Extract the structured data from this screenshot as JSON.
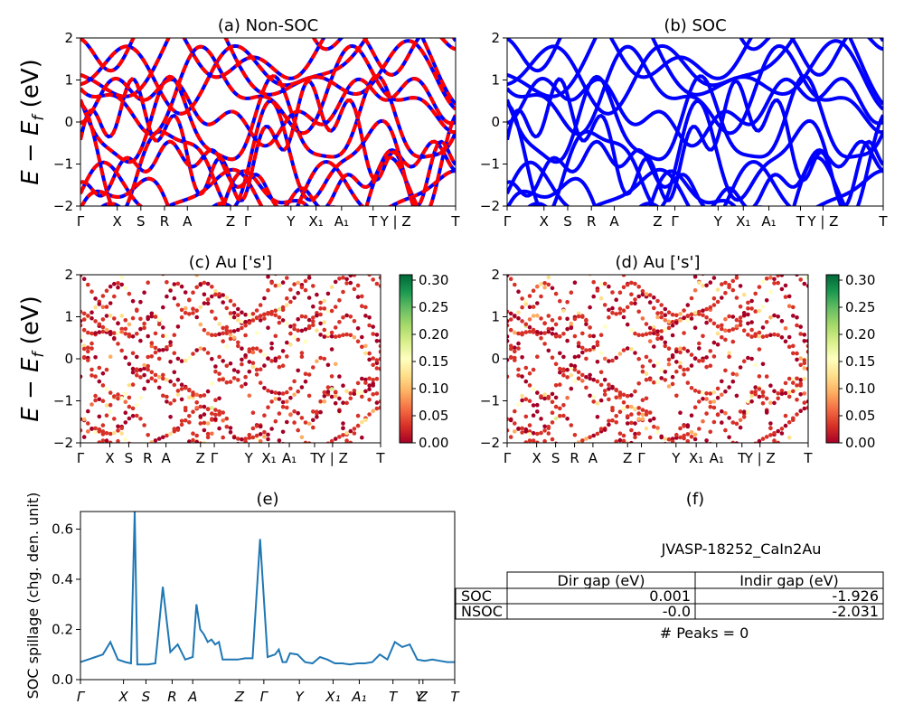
{
  "figure": {
    "ylabel_text": "E − E",
    "ylabel_sub": "f",
    "ylabel_unit": " (eV)",
    "kpath_bands": [
      "Γ",
      "X",
      "S",
      "R",
      "A",
      "Z",
      "Γ",
      "Y",
      "X₁",
      "A₁",
      "T",
      "Y | Z",
      "T"
    ],
    "kpath_spill": [
      "Γ",
      "X",
      "S",
      "R",
      "A",
      "Z",
      "Γ",
      "Y",
      "X₁",
      "A₁",
      "T",
      "Y",
      "Z",
      "T"
    ]
  },
  "colors": {
    "nonsoc_a": "#0000ff",
    "nonsoc_b": "#ff0000",
    "soc": "#0000ff",
    "spill": "#1f77b4",
    "cmap": [
      "#a50026",
      "#d73027",
      "#f46d43",
      "#fdae61",
      "#fee08b",
      "#ffffbf",
      "#d9ef8b",
      "#a6d96a",
      "#66bd63",
      "#1a9850",
      "#006837"
    ]
  },
  "panels": {
    "a": {
      "title": "(a) Non-SOC"
    },
    "b": {
      "title": "(b) SOC"
    },
    "c": {
      "title": "(c)  Au ['s']"
    },
    "d": {
      "title": "(d) Au ['s']"
    },
    "e": {
      "title": "(e)",
      "ylabel": "SOC spillage (chg. den. unit)"
    },
    "f": {
      "title": "(f)"
    }
  },
  "colorbar": {
    "ticks": [
      "0.00",
      "0.05",
      "0.10",
      "0.15",
      "0.20",
      "0.25",
      "0.30"
    ]
  },
  "table": {
    "material": "JVASP-18252_CaIn2Au",
    "headers": [
      "Dir gap (eV)",
      "Indir gap (eV)"
    ],
    "rows": [
      {
        "label": "SOC",
        "dir": "0.001",
        "indir": "-1.926"
      },
      {
        "label": "NSOC",
        "dir": "-0.0",
        "indir": "-2.031"
      }
    ],
    "peaks": "# Peaks = 0"
  },
  "chart_data": [
    {
      "type": "line",
      "title": "(a) Non-SOC",
      "ylabel": "E − E_f (eV)",
      "ylim": [
        -2,
        2
      ],
      "yticks": [
        -2,
        -1,
        0,
        1,
        2
      ],
      "series": [
        {
          "name": "",
          "style": "blue solid overlaid with red dashed"
        }
      ],
      "x_ticklabels": [
        "Γ",
        "X",
        "S",
        "R",
        "A",
        "Z",
        "Γ",
        "Y",
        "X₁",
        "A₁",
        "T",
        "Y | Z",
        "T"
      ]
    },
    {
      "type": "line",
      "title": "(b) SOC",
      "ylim": [
        -2,
        2
      ],
      "yticks": [
        -2,
        -1,
        0,
        1,
        2
      ],
      "x_ticklabels": [
        "Γ",
        "X",
        "S",
        "R",
        "A",
        "Z",
        "Γ",
        "Y",
        "X₁",
        "A₁",
        "T",
        "Y | Z",
        "T"
      ]
    },
    {
      "type": "scatter",
      "title": "(c)  Au ['s']",
      "ylabel": "E − E_f (eV)",
      "ylim": [
        -2,
        2
      ],
      "color_range": [
        0,
        0.3
      ]
    },
    {
      "type": "scatter",
      "title": "(d) Au ['s']",
      "ylim": [
        -2,
        2
      ],
      "color_range": [
        0,
        0.3
      ]
    },
    {
      "type": "line",
      "title": "(e)",
      "ylabel": "SOC spillage (chg. den. unit)",
      "ylim": [
        0,
        0.67
      ],
      "yticks": [
        0.0,
        0.2,
        0.4,
        0.6
      ],
      "x": [
        0,
        0.02,
        0.04,
        0.06,
        0.08,
        0.1,
        0.12,
        0.135,
        0.145,
        0.152,
        0.16,
        0.175,
        0.18,
        0.2,
        0.22,
        0.24,
        0.26,
        0.28,
        0.3,
        0.31,
        0.32,
        0.33,
        0.34,
        0.35,
        0.36,
        0.37,
        0.38,
        0.39,
        0.4,
        0.42,
        0.44,
        0.46,
        0.48,
        0.5,
        0.52,
        0.53,
        0.54,
        0.55,
        0.56,
        0.58,
        0.6,
        0.62,
        0.64,
        0.66,
        0.68,
        0.7,
        0.72,
        0.74,
        0.76,
        0.78,
        0.8,
        0.82,
        0.84,
        0.86,
        0.88,
        0.9,
        0.92,
        0.94,
        0.96,
        0.98,
        1.0
      ],
      "y": [
        0.07,
        0.08,
        0.09,
        0.1,
        0.15,
        0.08,
        0.07,
        0.065,
        0.67,
        0.06,
        0.06,
        0.06,
        0.06,
        0.065,
        0.37,
        0.11,
        0.14,
        0.08,
        0.09,
        0.3,
        0.2,
        0.18,
        0.15,
        0.16,
        0.14,
        0.15,
        0.08,
        0.08,
        0.08,
        0.08,
        0.085,
        0.085,
        0.56,
        0.09,
        0.1,
        0.12,
        0.07,
        0.07,
        0.105,
        0.1,
        0.07,
        0.065,
        0.09,
        0.08,
        0.065,
        0.065,
        0.06,
        0.065,
        0.065,
        0.07,
        0.1,
        0.08,
        0.15,
        0.13,
        0.14,
        0.08,
        0.075,
        0.08,
        0.075,
        0.07,
        0.07
      ]
    }
  ]
}
